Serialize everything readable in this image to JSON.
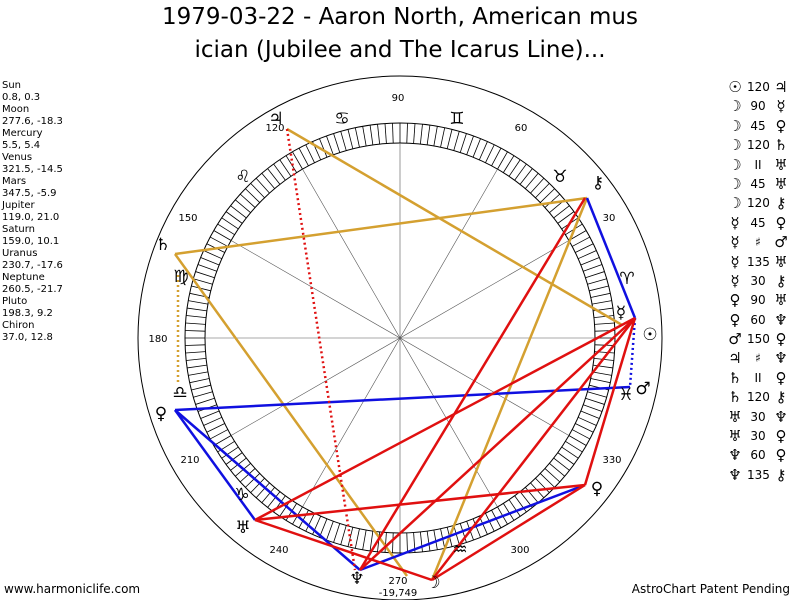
{
  "title": {
    "line1": "1979-03-22 - Aaron North, American mus",
    "line2": "ician (Jubilee and The Icarus Line)..."
  },
  "planet_positions": [
    {
      "name": "Sun",
      "coords": "0.8, 0.3"
    },
    {
      "name": "Moon",
      "coords": "277.6, -18.3"
    },
    {
      "name": "Mercury",
      "coords": "5.5, 5.4"
    },
    {
      "name": "Venus",
      "coords": "321.5, -14.5"
    },
    {
      "name": "Mars",
      "coords": "347.5, -5.9"
    },
    {
      "name": "Jupiter",
      "coords": "119.0, 21.0"
    },
    {
      "name": "Saturn",
      "coords": "159.0, 10.1"
    },
    {
      "name": "Uranus",
      "coords": "230.7, -17.6"
    },
    {
      "name": "Neptune",
      "coords": "260.5, -21.7"
    },
    {
      "name": "Pluto",
      "coords": "198.3, 9.2"
    },
    {
      "name": "Chiron",
      "coords": "37.0, 12.8"
    }
  ],
  "aspect_list": [
    {
      "p1": "☉",
      "aspect": "120",
      "p2": "♃"
    },
    {
      "p1": "☽",
      "aspect": "90",
      "p2": "☿"
    },
    {
      "p1": "☽",
      "aspect": "45",
      "p2": "♀"
    },
    {
      "p1": "☽",
      "aspect": "120",
      "p2": "♄"
    },
    {
      "p1": "☽",
      "aspect": "II",
      "p2": "♅"
    },
    {
      "p1": "☽",
      "aspect": "45",
      "p2": "♅"
    },
    {
      "p1": "☽",
      "aspect": "120",
      "p2": "⚷"
    },
    {
      "p1": "☿",
      "aspect": "45",
      "p2": "♀"
    },
    {
      "p1": "☿",
      "aspect": "♯",
      "p2": "♂"
    },
    {
      "p1": "☿",
      "aspect": "135",
      "p2": "♅"
    },
    {
      "p1": "☿",
      "aspect": "30",
      "p2": "⚷"
    },
    {
      "p1": "♀",
      "aspect": "90",
      "p2": "♅"
    },
    {
      "p1": "♀",
      "aspect": "60",
      "p2": "♆"
    },
    {
      "p1": "♂",
      "aspect": "150",
      "p2": "♀"
    },
    {
      "p1": "♃",
      "aspect": "♯",
      "p2": "♆"
    },
    {
      "p1": "♄",
      "aspect": "II",
      "p2": "♀"
    },
    {
      "p1": "♄",
      "aspect": "120",
      "p2": "⚷"
    },
    {
      "p1": "♅",
      "aspect": "30",
      "p2": "♆"
    },
    {
      "p1": "♅",
      "aspect": "30",
      "p2": "♀"
    },
    {
      "p1": "♆",
      "aspect": "60",
      "p2": "♀"
    },
    {
      "p1": "♆",
      "aspect": "135",
      "p2": "⚷"
    }
  ],
  "wheel": {
    "degree_labels": [
      "90",
      "60",
      "30",
      "330",
      "300",
      "270",
      "240",
      "210",
      "180",
      "150",
      "120"
    ],
    "signs": [
      {
        "name": "leo-sign",
        "glyph": "♌"
      },
      {
        "name": "gemini-sign",
        "glyph": "♊"
      },
      {
        "name": "cancer-sign",
        "glyph": "♋"
      },
      {
        "name": "taurus-sign",
        "glyph": "♉"
      },
      {
        "name": "aries-sign",
        "glyph": "♈"
      },
      {
        "name": "pisces-sign",
        "glyph": "♓"
      },
      {
        "name": "aquarius-sign",
        "glyph": "♒"
      },
      {
        "name": "capricorn-sign",
        "glyph": "♑"
      },
      {
        "name": "sagittarius-sign",
        "glyph": "♐"
      },
      {
        "name": "scorpio-sign",
        "glyph": "♏"
      },
      {
        "name": "libra-sign",
        "glyph": "♎"
      },
      {
        "name": "virgo-sign",
        "glyph": "♍"
      }
    ],
    "planets": [
      {
        "name": "sun-glyph",
        "glyph": "☉"
      },
      {
        "name": "moon-glyph",
        "glyph": "☽"
      },
      {
        "name": "mercury-glyph",
        "glyph": "☿"
      },
      {
        "name": "venus-glyph",
        "glyph": "♀"
      },
      {
        "name": "mars-glyph",
        "glyph": "♂"
      },
      {
        "name": "jupiter-glyph",
        "glyph": "♃"
      },
      {
        "name": "saturn-glyph",
        "glyph": "♄"
      },
      {
        "name": "uranus-glyph",
        "glyph": "♅"
      },
      {
        "name": "neptune-glyph",
        "glyph": "♆"
      },
      {
        "name": "pluto-glyph",
        "glyph": "♀"
      },
      {
        "name": "chiron-glyph",
        "glyph": "⚷"
      }
    ],
    "neptune_label": "-19,749",
    "colors": {
      "trine": "#d4a030",
      "square": "#e01010",
      "opposition": "#1010e0"
    }
  },
  "footer": {
    "left": "www.harmoniclife.com",
    "right": "AstroChart Patent Pending"
  }
}
